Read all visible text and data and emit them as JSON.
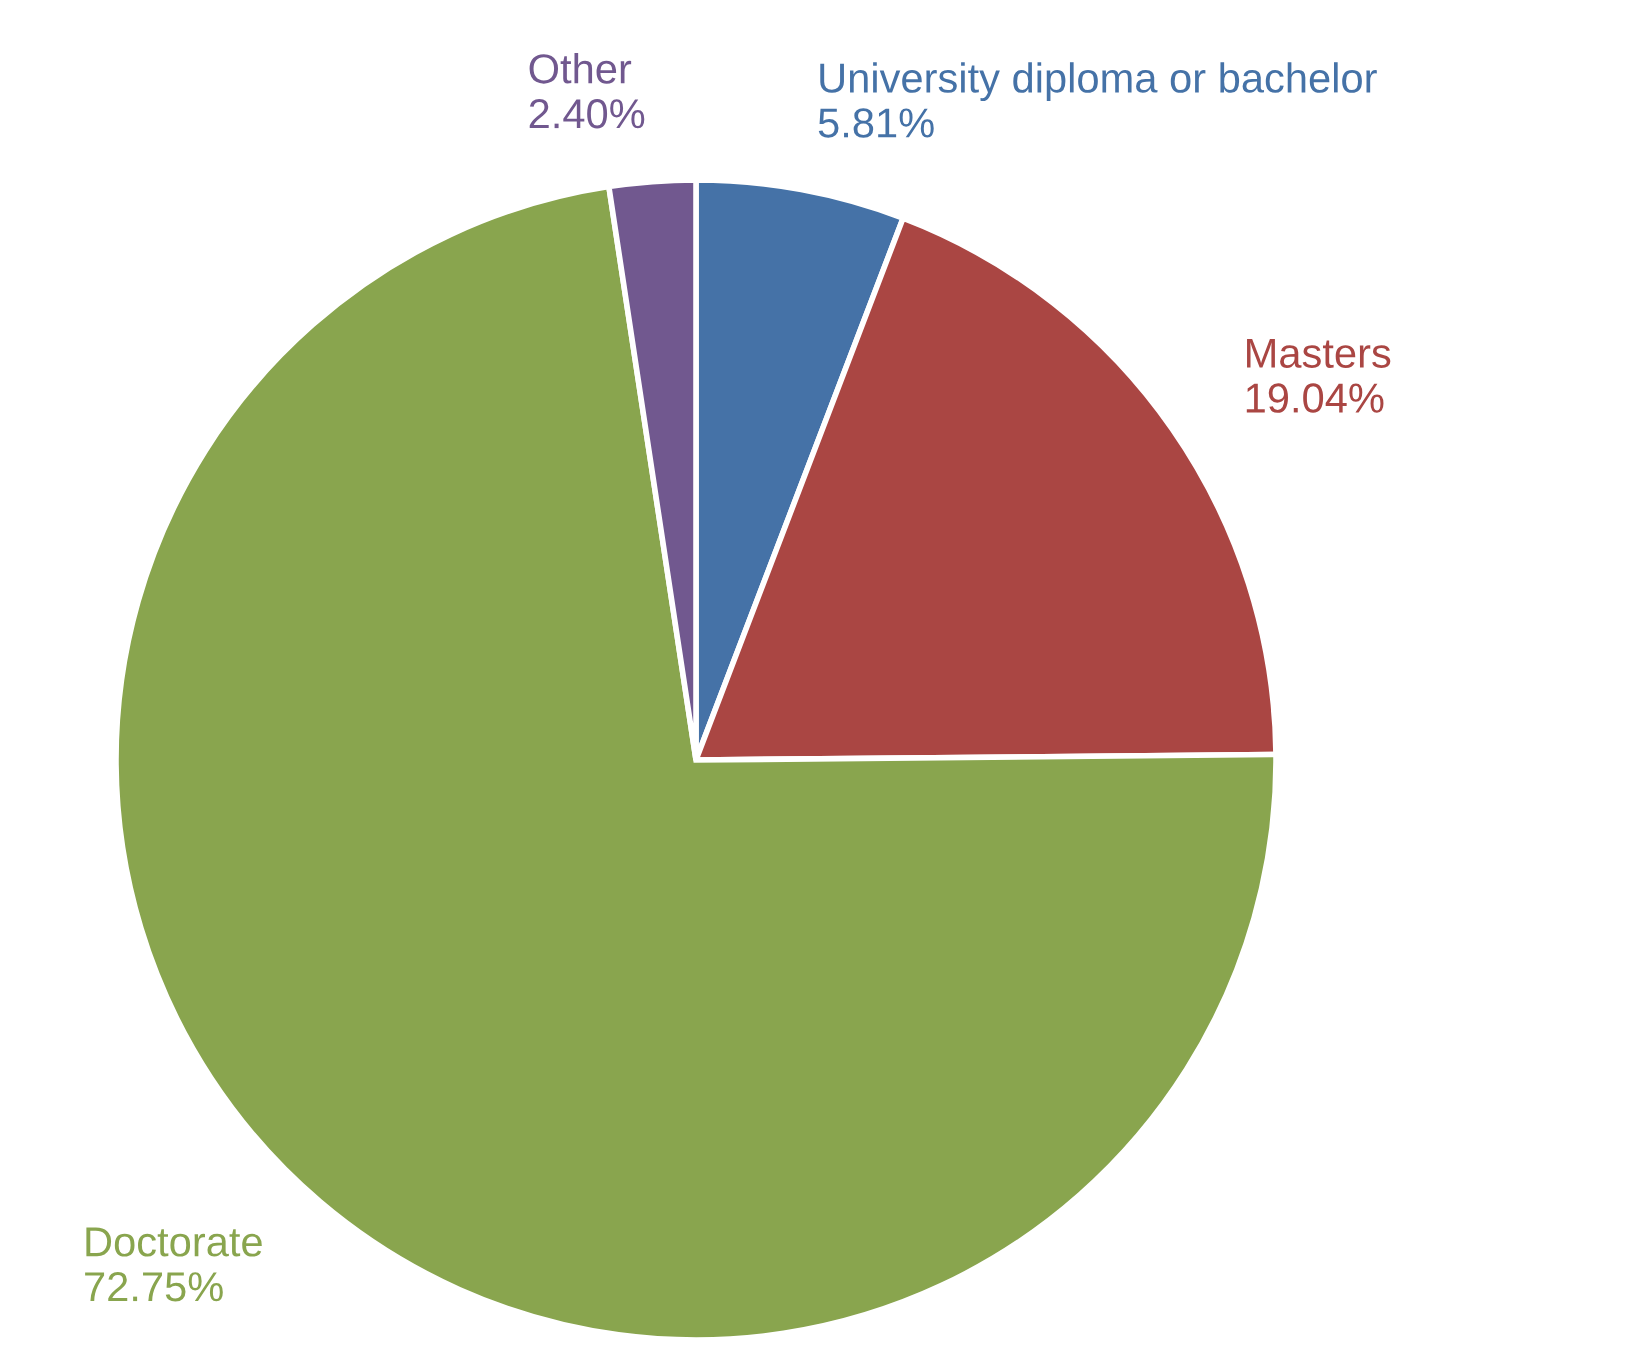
{
  "chart_data": {
    "type": "pie",
    "categories": [
      "University diploma or bachelor",
      "Masters",
      "Doctorate",
      "Other"
    ],
    "values": [
      5.81,
      19.04,
      72.75,
      2.4
    ],
    "colors": [
      "#4572a7",
      "#aa4643",
      "#89a54e",
      "#71588f"
    ],
    "value_labels": [
      "5.81%",
      "19.04%",
      "72.75%",
      "2.40%"
    ],
    "legend": false
  }
}
